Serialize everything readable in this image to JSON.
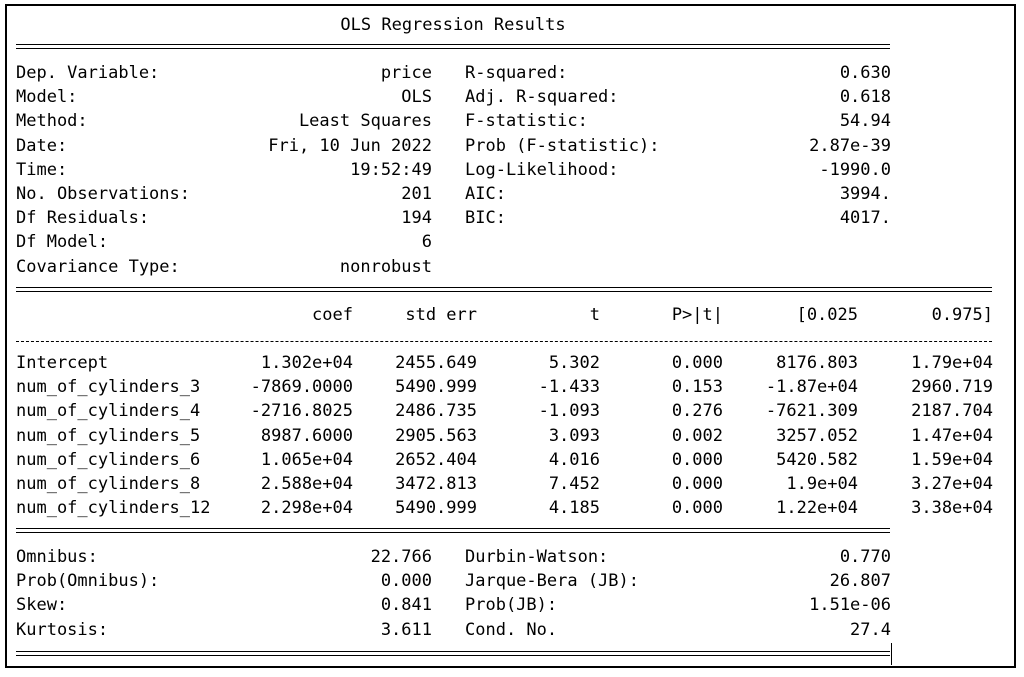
{
  "title": "OLS Regression Results",
  "top_left": [
    {
      "label": "Dep. Variable:",
      "value": "price"
    },
    {
      "label": "Model:",
      "value": "OLS"
    },
    {
      "label": "Method:",
      "value": "Least Squares"
    },
    {
      "label": "Date:",
      "value": "Fri, 10 Jun 2022"
    },
    {
      "label": "Time:",
      "value": "19:52:49"
    },
    {
      "label": "No. Observations:",
      "value": "201"
    },
    {
      "label": "Df Residuals:",
      "value": "194"
    },
    {
      "label": "Df Model:",
      "value": "6"
    },
    {
      "label": "Covariance Type:",
      "value": "nonrobust"
    }
  ],
  "top_right": [
    {
      "label": "R-squared:",
      "value": "0.630"
    },
    {
      "label": "Adj. R-squared:",
      "value": "0.618"
    },
    {
      "label": "F-statistic:",
      "value": "54.94"
    },
    {
      "label": "Prob (F-statistic):",
      "value": "2.87e-39"
    },
    {
      "label": "Log-Likelihood:",
      "value": "-1990.0"
    },
    {
      "label": "AIC:",
      "value": "3994."
    },
    {
      "label": "BIC:",
      "value": "4017."
    }
  ],
  "coef_headers": [
    "coef",
    "std err",
    "t",
    "P>|t|",
    "[0.025",
    "0.975]"
  ],
  "coef_rows": [
    [
      "Intercept",
      "1.302e+04",
      "2455.649",
      "5.302",
      "0.000",
      "8176.803",
      "1.79e+04"
    ],
    [
      "num_of_cylinders_3",
      "-7869.0000",
      "5490.999",
      "-1.433",
      "0.153",
      "-1.87e+04",
      "2960.719"
    ],
    [
      "num_of_cylinders_4",
      "-2716.8025",
      "2486.735",
      "-1.093",
      "0.276",
      "-7621.309",
      "2187.704"
    ],
    [
      "num_of_cylinders_5",
      "8987.6000",
      "2905.563",
      "3.093",
      "0.002",
      "3257.052",
      "1.47e+04"
    ],
    [
      "num_of_cylinders_6",
      "1.065e+04",
      "2652.404",
      "4.016",
      "0.000",
      "5420.582",
      "1.59e+04"
    ],
    [
      "num_of_cylinders_8",
      "2.588e+04",
      "3472.813",
      "7.452",
      "0.000",
      "1.9e+04",
      "3.27e+04"
    ],
    [
      "num_of_cylinders_12",
      "2.298e+04",
      "5490.999",
      "4.185",
      "0.000",
      "1.22e+04",
      "3.38e+04"
    ]
  ],
  "bottom_left": [
    {
      "label": "Omnibus:",
      "value": "22.766"
    },
    {
      "label": "Prob(Omnibus):",
      "value": "0.000"
    },
    {
      "label": "Skew:",
      "value": "0.841"
    },
    {
      "label": "Kurtosis:",
      "value": "3.611"
    }
  ],
  "bottom_right": [
    {
      "label": "Durbin-Watson:",
      "value": "0.770"
    },
    {
      "label": "Jarque-Bera (JB):",
      "value": "26.807"
    },
    {
      "label": "Prob(JB):",
      "value": "1.51e-06"
    },
    {
      "label": "Cond. No.",
      "value": "27.4"
    }
  ]
}
